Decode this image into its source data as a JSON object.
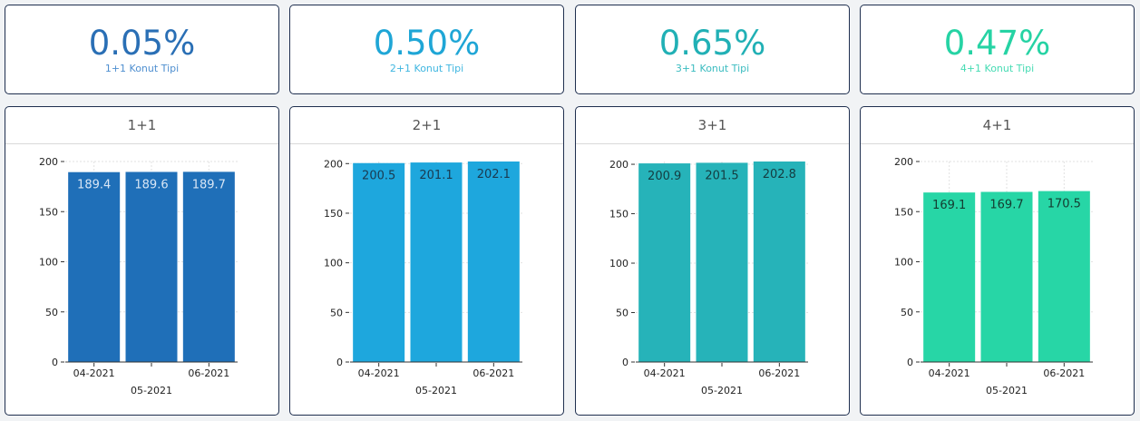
{
  "kpis": [
    {
      "value": "0.05%",
      "label": "1+1 Konut Tipi",
      "value_color": "#2a6fb5",
      "label_color": "#4f8fd0"
    },
    {
      "value": "0.50%",
      "label": "2+1 Konut Tipi",
      "value_color": "#1fa6d6",
      "label_color": "#3fb6e0"
    },
    {
      "value": "0.65%",
      "label": "3+1 Konut Tipi",
      "value_color": "#21b0b5",
      "label_color": "#3bbcc0"
    },
    {
      "value": "0.47%",
      "label": "4+1 Konut Tipi",
      "value_color": "#26d3a4",
      "label_color": "#45dbb3"
    }
  ],
  "chart_data": [
    {
      "type": "bar",
      "title": "1+1",
      "categories": [
        "04-2021",
        "05-2021",
        "06-2021"
      ],
      "values": [
        189.4,
        189.6,
        189.7
      ],
      "value_labels": [
        "189.4",
        "189.6",
        "189.7"
      ],
      "ylim": [
        0,
        200
      ],
      "yticks": [
        0,
        50,
        100,
        150,
        200
      ],
      "color": "#1f6fb8",
      "label_color": "#d8e6f5",
      "grid": true
    },
    {
      "type": "bar",
      "title": "2+1",
      "categories": [
        "04-2021",
        "05-2021",
        "06-2021"
      ],
      "values": [
        200.5,
        201.1,
        202.1
      ],
      "value_labels": [
        "200.5",
        "201.1",
        "202.1"
      ],
      "ylim": [
        0,
        202.1
      ],
      "yticks": [
        0,
        50,
        100,
        150,
        200
      ],
      "color": "#1ea7dd",
      "label_color": "#1a3a50",
      "grid": true
    },
    {
      "type": "bar",
      "title": "3+1",
      "categories": [
        "04-2021",
        "05-2021",
        "06-2021"
      ],
      "values": [
        200.9,
        201.5,
        202.8
      ],
      "value_labels": [
        "200.9",
        "201.5",
        "202.8"
      ],
      "ylim": [
        0,
        202.8
      ],
      "yticks": [
        0,
        50,
        100,
        150,
        200
      ],
      "color": "#26b3b9",
      "label_color": "#143c40",
      "grid": true
    },
    {
      "type": "bar",
      "title": "4+1",
      "categories": [
        "04-2021",
        "05-2021",
        "06-2021"
      ],
      "values": [
        169.1,
        169.7,
        170.5
      ],
      "value_labels": [
        "169.1",
        "169.7",
        "170.5"
      ],
      "ylim": [
        0,
        200
      ],
      "yticks": [
        0,
        50,
        100,
        150,
        200
      ],
      "color": "#27d6a6",
      "label_color": "#143c30",
      "grid": true
    }
  ]
}
